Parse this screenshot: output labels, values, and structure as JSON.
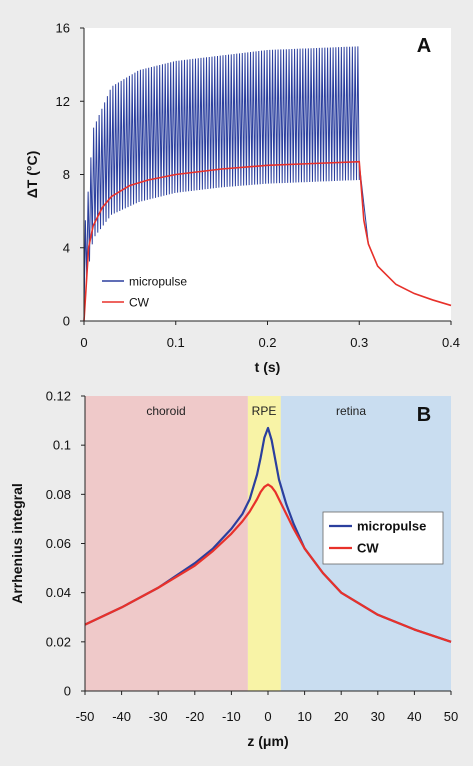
{
  "colors": {
    "micropulse": "#2b3f9e",
    "cw": "#e8312a",
    "choroid_bg": "#efc9c9",
    "rpe_bg": "#f8f3a6",
    "retina_bg": "#c9ddf0",
    "page_bg": "#ececec"
  },
  "chart_data": [
    {
      "type": "line",
      "panel_label": "A",
      "xlabel": "t (s)",
      "ylabel": "ΔT (°C)",
      "xlim": [
        0,
        0.4
      ],
      "ylim": [
        0,
        16
      ],
      "x_ticks": [
        "0",
        "0.1",
        "0.2",
        "0.3",
        "0.4"
      ],
      "y_ticks": [
        "0",
        "4",
        "8",
        "12",
        "16"
      ],
      "legend_position": "bottom-left",
      "legend": [
        "micropulse",
        "CW"
      ],
      "grid": false,
      "series": [
        {
          "name": "micropulse",
          "pulse_on_fraction": 0.5,
          "pulse_count": 100,
          "peak_envelope": {
            "x": [
              0.002,
              0.01,
              0.03,
              0.06,
              0.1,
              0.15,
              0.2,
              0.25,
              0.3
            ],
            "y": [
              5.5,
              10.5,
              12.8,
              13.7,
              14.2,
              14.5,
              14.8,
              14.9,
              15.0
            ]
          },
          "trough_envelope": {
            "x": [
              0.002,
              0.01,
              0.03,
              0.06,
              0.1,
              0.15,
              0.2,
              0.25,
              0.3
            ],
            "y": [
              2.0,
              4.5,
              5.8,
              6.5,
              7.0,
              7.3,
              7.5,
              7.6,
              7.7
            ]
          },
          "decay": {
            "x": [
              0.3,
              0.31,
              0.32,
              0.34,
              0.36,
              0.38,
              0.4
            ],
            "y": [
              8.6,
              4.2,
              3.0,
              2.0,
              1.5,
              1.15,
              0.85
            ]
          }
        },
        {
          "name": "CW",
          "x": [
            0,
            0.005,
            0.01,
            0.02,
            0.03,
            0.05,
            0.07,
            0.1,
            0.15,
            0.2,
            0.25,
            0.3,
            0.305,
            0.31,
            0.32,
            0.34,
            0.36,
            0.38,
            0.4
          ],
          "y": [
            0,
            4.0,
            5.2,
            6.2,
            6.8,
            7.4,
            7.7,
            8.0,
            8.3,
            8.5,
            8.6,
            8.7,
            5.5,
            4.2,
            3.0,
            2.0,
            1.5,
            1.15,
            0.85
          ]
        }
      ]
    },
    {
      "type": "line",
      "panel_label": "B",
      "xlabel": "z (μm)",
      "ylabel": "Arrhenius integral",
      "xlim": [
        -50,
        50
      ],
      "ylim": [
        0,
        0.12
      ],
      "x_ticks": [
        "-50",
        "-40",
        "-30",
        "-20",
        "-10",
        "0",
        "10",
        "20",
        "30",
        "40",
        "50"
      ],
      "y_ticks": [
        "0",
        "0.02",
        "0.04",
        "0.06",
        "0.08",
        "0.1",
        "0.12"
      ],
      "legend_position": "right",
      "legend": [
        "micropulse",
        "CW"
      ],
      "grid": false,
      "regions": [
        {
          "label": "choroid",
          "from": -50,
          "to": -5.5
        },
        {
          "label": "RPE",
          "from": -5.5,
          "to": 3.5
        },
        {
          "label": "retina",
          "from": 3.5,
          "to": 50
        }
      ],
      "series": [
        {
          "name": "micropulse",
          "x": [
            -50,
            -40,
            -30,
            -20,
            -15,
            -10,
            -7,
            -5,
            -3,
            -2,
            -1,
            0,
            1,
            2,
            3,
            5,
            7,
            10,
            15,
            20,
            30,
            40,
            50
          ],
          "y": [
            0.027,
            0.034,
            0.042,
            0.052,
            0.058,
            0.066,
            0.072,
            0.078,
            0.088,
            0.095,
            0.103,
            0.107,
            0.102,
            0.094,
            0.086,
            0.076,
            0.068,
            0.058,
            0.048,
            0.04,
            0.031,
            0.025,
            0.02
          ]
        },
        {
          "name": "CW",
          "x": [
            -50,
            -40,
            -30,
            -20,
            -15,
            -10,
            -7,
            -5,
            -3,
            -2,
            -1,
            0,
            1,
            2,
            3,
            5,
            7,
            10,
            15,
            20,
            30,
            40,
            50
          ],
          "y": [
            0.027,
            0.034,
            0.042,
            0.051,
            0.057,
            0.064,
            0.069,
            0.073,
            0.078,
            0.081,
            0.083,
            0.084,
            0.083,
            0.081,
            0.078,
            0.072,
            0.066,
            0.058,
            0.048,
            0.04,
            0.031,
            0.025,
            0.02
          ]
        }
      ]
    }
  ]
}
